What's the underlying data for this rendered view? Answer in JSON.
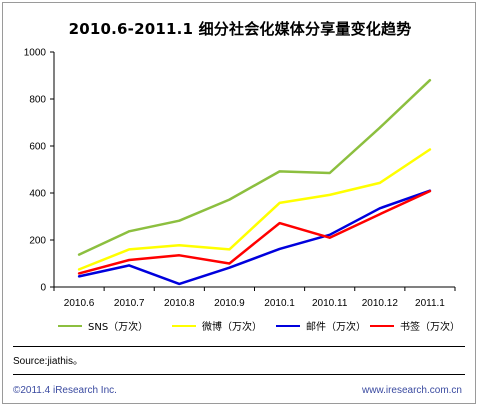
{
  "source_text": "Source:jiathis。",
  "copyright_text": "©2011.4 iResearch Inc.",
  "website_text": "www.iresearch.com.cn",
  "chart_data": {
    "type": "line",
    "title": "2010.6-2011.1 细分社会化媒体分享量变化趋势",
    "xlabel": "",
    "ylabel": "",
    "categories": [
      "2010.6",
      "2010.7",
      "2010.8",
      "2010.9",
      "2010.1",
      "2010.11",
      "2010.12",
      "2011.1"
    ],
    "ylim": [
      0,
      1000
    ],
    "yticks": [
      0,
      200,
      400,
      600,
      800,
      1000
    ],
    "grid": false,
    "legend_position": "bottom",
    "series": [
      {
        "name": "SNS（万次）",
        "color": "#8cbf3f",
        "values": [
          138,
          237,
          282,
          372,
          492,
          485,
          678,
          880
        ]
      },
      {
        "name": "微博（万次）",
        "color": "#ffff00",
        "values": [
          75,
          160,
          178,
          160,
          358,
          392,
          443,
          585
        ]
      },
      {
        "name": "邮件（万次）",
        "color": "#0000dd",
        "values": [
          45,
          92,
          13,
          82,
          162,
          222,
          335,
          410
        ]
      },
      {
        "name": "书签（万次）",
        "color": "#ff0000",
        "values": [
          58,
          115,
          135,
          100,
          272,
          210,
          310,
          408
        ]
      }
    ]
  }
}
